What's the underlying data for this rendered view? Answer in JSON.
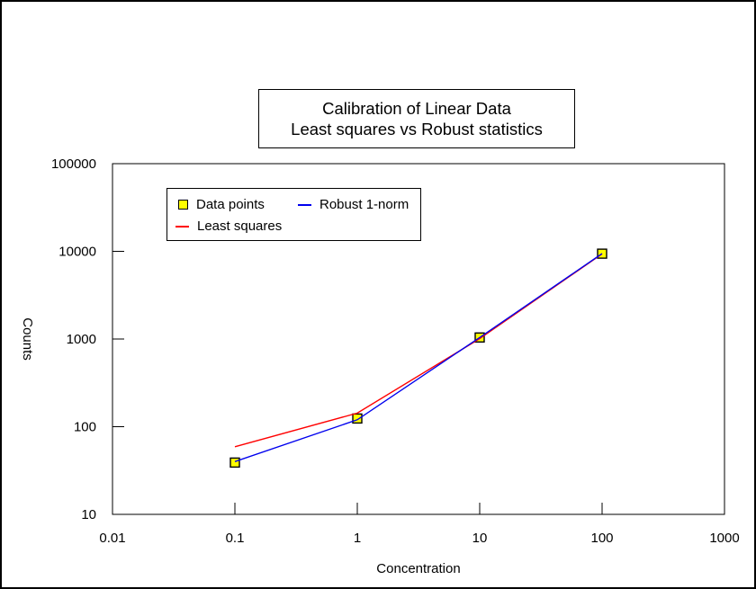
{
  "title": {
    "line1": "Calibration of Linear Data",
    "line2": "Least squares vs Robust statistics"
  },
  "colors": {
    "background": "#ffffff",
    "frame": "#000000",
    "data_points": "#ffff00",
    "least_squares": "#ff0000",
    "robust": "#0000ee"
  },
  "chart_data": {
    "type": "scatter",
    "title": "Calibration of Linear Data",
    "subtitle": "Least squares vs Robust statistics",
    "legend_position": "top-left-inside",
    "grid": false,
    "x_axis": {
      "label": "Concentration",
      "scale": "log",
      "range": [
        0.01,
        1000
      ],
      "tick_values": [
        0.01,
        0.1,
        1,
        10,
        100,
        1000
      ],
      "tick_labels": [
        "0.01",
        "0.1",
        "1",
        "10",
        "100",
        "1000"
      ]
    },
    "y_axis": {
      "label": "Counts",
      "scale": "log",
      "range": [
        10,
        100000
      ],
      "tick_values": [
        10,
        100,
        1000,
        10000,
        100000
      ],
      "tick_labels": [
        "10",
        "100",
        "1000",
        "10000",
        "100000"
      ]
    },
    "series": [
      {
        "name": "Data points",
        "type": "scatter",
        "marker": "square",
        "color": "#ffff00",
        "edge_color": "#000000",
        "points": [
          [
            0.1,
            39
          ],
          [
            1,
            124
          ],
          [
            10,
            1040
          ],
          [
            100,
            9400
          ]
        ]
      },
      {
        "name": "Least squares",
        "type": "line",
        "color": "#ff0000",
        "points": [
          [
            0.1,
            59
          ],
          [
            1,
            143
          ],
          [
            10,
            1010
          ],
          [
            100,
            9350
          ]
        ]
      },
      {
        "name": "Robust 1-norm",
        "type": "line",
        "color": "#0000ee",
        "points": [
          [
            0.1,
            40
          ],
          [
            1,
            120
          ],
          [
            10,
            1040
          ],
          [
            100,
            9430
          ]
        ]
      }
    ]
  }
}
